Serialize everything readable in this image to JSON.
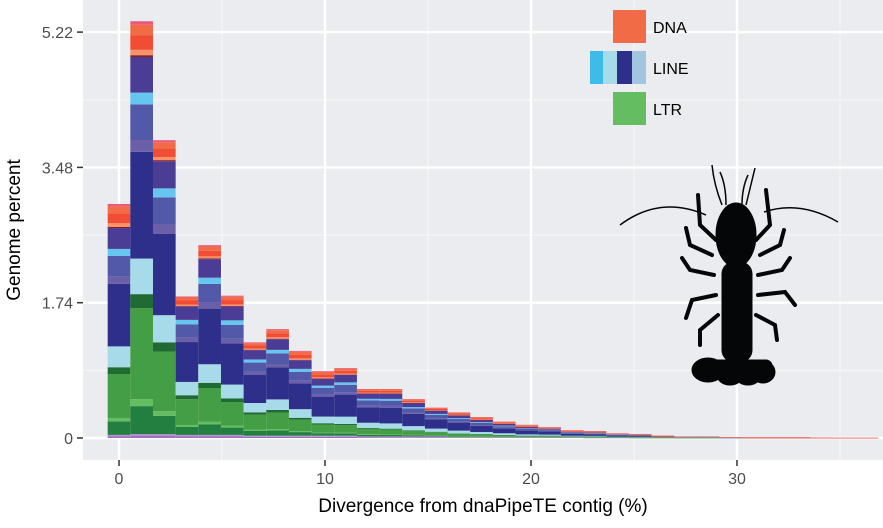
{
  "chart_data": {
    "type": "bar",
    "stacked": true,
    "title": "",
    "xlabel": "Divergence from dnaPipeTE contig (%)",
    "ylabel": "Genome percent",
    "xlim": [
      -1.7,
      37.2
    ],
    "ylim": [
      0,
      5.63
    ],
    "xticks": [
      0,
      10,
      20,
      30
    ],
    "xtick_labels": [
      "0",
      "10",
      "20",
      "30"
    ],
    "yticks": [
      0,
      1.74,
      3.48,
      5.22
    ],
    "ytick_labels": [
      "0",
      "1.74",
      "3.48",
      "5.22"
    ],
    "grid": true,
    "legend_position": "top-right",
    "bin_width": 1.1,
    "x": [
      0,
      1.1,
      2.2,
      3.3,
      4.4,
      5.5,
      6.6,
      7.7,
      8.8,
      9.9,
      11.0,
      12.1,
      13.2,
      14.3,
      15.4,
      16.5,
      17.6,
      18.7,
      19.8,
      20.9,
      22.0,
      23.1,
      24.2,
      25.3,
      26.4,
      27.5,
      28.6,
      29.7,
      30.8,
      31.9,
      33.0,
      34.1,
      35.2,
      36.3
    ],
    "series": [
      {
        "values": [
          0.04,
          0.05,
          0.05,
          0.04,
          0.04,
          0.04,
          0.03,
          0.03,
          0.03,
          0.03,
          0.03,
          0.02,
          0.02,
          0.02,
          0.02,
          0.01,
          0.01,
          0.01,
          0.01,
          0.01,
          0.01,
          0.005,
          0.005,
          0,
          0,
          0,
          0,
          0,
          0,
          0,
          0,
          0,
          0,
          0
        ],
        "color": "#9b6fbf"
      },
      {
        "name": "LTR",
        "values": [
          0.87,
          1.8,
          1.18,
          0.51,
          0.67,
          0.47,
          0.3,
          0.33,
          0.23,
          0.16,
          0.15,
          0.11,
          0.1,
          0.08,
          0.06,
          0.05,
          0.04,
          0.03,
          0.02,
          0.02,
          0.01,
          0.015,
          0.005,
          0.01,
          0.01,
          0.005,
          0.005,
          0,
          0,
          0,
          0,
          0,
          0,
          0
        ],
        "color": "#5fbd5e"
      },
      {
        "name": "LINE",
        "values": [
          1.79,
          3.05,
          2.33,
          1.14,
          1.59,
          1.18,
          0.8,
          0.91,
          0.74,
          0.57,
          0.63,
          0.44,
          0.45,
          0.35,
          0.27,
          0.23,
          0.18,
          0.14,
          0.11,
          0.09,
          0.06,
          0.05,
          0.04,
          0.03,
          0.01,
          0.01,
          0.01,
          0.005,
          0,
          0,
          0,
          0,
          0,
          0
        ],
        "color": "#2e2f8a"
      },
      {
        "name": "DNA",
        "values": [
          0.31,
          0.46,
          0.27,
          0.13,
          0.18,
          0.14,
          0.1,
          0.13,
          0.12,
          0.1,
          0.09,
          0.06,
          0.06,
          0.05,
          0.04,
          0.04,
          0.04,
          0.03,
          0.03,
          0.02,
          0.02,
          0.02,
          0.01,
          0.01,
          0.01,
          0.005,
          0.005,
          0.005,
          0.01,
          0.01,
          0.01,
          0.005,
          0.003,
          0.003
        ],
        "color": "#f26b47"
      }
    ],
    "legend": [
      {
        "label": "DNA",
        "colors": [
          "#f26b47"
        ]
      },
      {
        "label": "LINE",
        "colors": [
          "#3dbbe9",
          "#a8dbe9",
          "#2e2f8a",
          "#a3c6e0"
        ]
      },
      {
        "label": "LTR",
        "colors": [
          "#64bd60"
        ]
      }
    ],
    "palettes": {
      "base": [
        "#9b6fbf",
        "#b58fd0"
      ],
      "LTR": [
        "#237f3f",
        "#64bd60",
        "#449e46",
        "#1f6b33"
      ],
      "LINE": [
        "#a8dbe9",
        "#2e2f8a",
        "#6a5fa8",
        "#5159a8",
        "#66c6ef",
        "#4b3c96"
      ],
      "DNA": [
        "#8e1a1a",
        "#f7926a",
        "#f04d34",
        "#f26b47",
        "#ea5b7a"
      ]
    },
    "annotation_icon": "crayfish-silhouette"
  }
}
